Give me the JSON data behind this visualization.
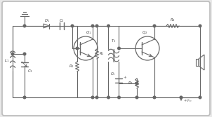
{
  "bg_color": "#e8e8e8",
  "border_fill": "#ffffff",
  "line_color": "#666666",
  "label_color": "#444444",
  "fig_width": 3.02,
  "fig_height": 1.67,
  "dpi": 100
}
